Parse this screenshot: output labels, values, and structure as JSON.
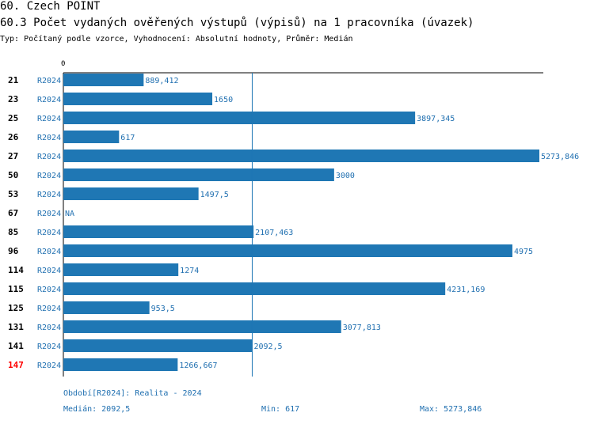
{
  "header": {
    "title": "60. Czech POINT",
    "subtitle": "60.3 Počet vydaných ověřených výstupů (výpisů) na 1 pracovníka (úvazek)",
    "type_line": "Typ: Počítaný podle vzorce, Vyhodnocení: Absolutní hodnoty, Průměr: Medián"
  },
  "chart_data": {
    "type": "bar",
    "orientation": "horizontal",
    "x_tick_label": "0",
    "xlim": [
      0,
      5273.846
    ],
    "median": 2092.5,
    "period_label": "R2024",
    "rows": [
      {
        "id": "21",
        "period": "R2024",
        "value": 889.412,
        "label": "889,412",
        "highlight": false
      },
      {
        "id": "23",
        "period": "R2024",
        "value": 1650,
        "label": "1650",
        "highlight": false
      },
      {
        "id": "25",
        "period": "R2024",
        "value": 3897.345,
        "label": "3897,345",
        "highlight": false
      },
      {
        "id": "26",
        "period": "R2024",
        "value": 617,
        "label": "617",
        "highlight": false
      },
      {
        "id": "27",
        "period": "R2024",
        "value": 5273.846,
        "label": "5273,846",
        "highlight": false
      },
      {
        "id": "50",
        "period": "R2024",
        "value": 3000,
        "label": "3000",
        "highlight": false
      },
      {
        "id": "53",
        "period": "R2024",
        "value": 1497.5,
        "label": "1497,5",
        "highlight": false
      },
      {
        "id": "67",
        "period": "R2024",
        "value": null,
        "label": "NA",
        "highlight": false
      },
      {
        "id": "85",
        "period": "R2024",
        "value": 2107.463,
        "label": "2107,463",
        "highlight": false
      },
      {
        "id": "96",
        "period": "R2024",
        "value": 4975,
        "label": "4975",
        "highlight": false
      },
      {
        "id": "114",
        "period": "R2024",
        "value": 1274,
        "label": "1274",
        "highlight": false
      },
      {
        "id": "115",
        "period": "R2024",
        "value": 4231.169,
        "label": "4231,169",
        "highlight": false
      },
      {
        "id": "125",
        "period": "R2024",
        "value": 953.5,
        "label": "953,5",
        "highlight": false
      },
      {
        "id": "131",
        "period": "R2024",
        "value": 3077.813,
        "label": "3077,813",
        "highlight": false
      },
      {
        "id": "141",
        "period": "R2024",
        "value": 2092.5,
        "label": "2092,5",
        "highlight": false
      },
      {
        "id": "147",
        "period": "R2024",
        "value": 1266.667,
        "label": "1266,667",
        "highlight": true
      }
    ],
    "colors": {
      "bar": "#1f77b4",
      "text": "#1f6fb0",
      "highlight_id": "#ff0000",
      "axis": "#000000"
    }
  },
  "footer": {
    "period_note": "Období[R2024]: Realita - 2024",
    "median": "Medián: 2092,5",
    "min": "Min: 617",
    "max": "Max: 5273,846"
  }
}
